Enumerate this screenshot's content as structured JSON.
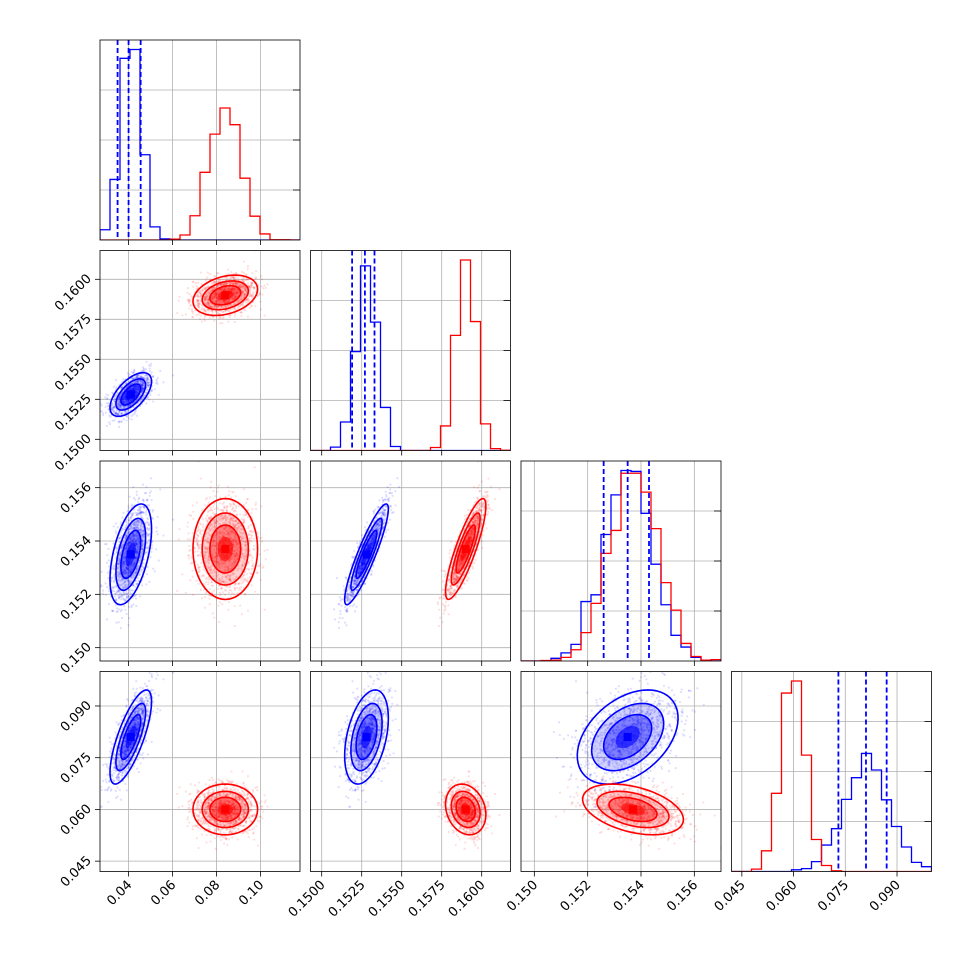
{
  "chart_data": {
    "type": "corner",
    "grid": true,
    "parameters": [
      {
        "lim": [
          0.027,
          0.118
        ],
        "ticks": [
          0.04,
          0.06,
          0.08,
          0.1
        ],
        "tick_labels": [
          "0.04",
          "0.06",
          "0.08",
          "0.10"
        ]
      },
      {
        "lim": [
          0.1493,
          0.1618
        ],
        "ticks": [
          0.15,
          0.1525,
          0.155,
          0.1575,
          0.16
        ],
        "tick_labels": [
          "0.1500",
          "0.1525",
          "0.1550",
          "0.1575",
          "0.1600"
        ]
      },
      {
        "lim": [
          0.1495,
          0.157
        ],
        "ticks": [
          0.15,
          0.152,
          0.154,
          0.156
        ],
        "tick_labels": [
          "0.150",
          "0.152",
          "0.154",
          "0.156"
        ]
      },
      {
        "lim": [
          0.042,
          0.1
        ],
        "ticks": [
          0.045,
          0.06,
          0.075,
          0.09
        ],
        "tick_labels": [
          "0.045",
          "0.060",
          "0.075",
          "0.090"
        ]
      }
    ],
    "series": [
      {
        "color": "#0000ff",
        "means": [
          0.041,
          0.1528,
          0.1535,
          0.081
        ],
        "stds": [
          0.0045,
          0.00065,
          0.0009,
          0.0065
        ],
        "corr": [
          [
            1,
            0.6,
            0.5,
            0.75
          ],
          [
            0.6,
            1,
            0.9,
            0.4
          ],
          [
            0.5,
            0.9,
            1,
            0.4
          ],
          [
            0.75,
            0.4,
            0.4,
            1
          ]
        ],
        "quantiles": [
          [
            0.035,
            0.04,
            0.0455
          ],
          [
            0.1519,
            0.1527,
            0.1533
          ],
          [
            0.1526,
            0.1535,
            0.1543
          ],
          [
            0.073,
            0.081,
            0.087
          ]
        ]
      },
      {
        "color": "#ff0000",
        "means": [
          0.084,
          0.159,
          0.1537,
          0.06
        ],
        "stds": [
          0.007,
          0.0006,
          0.0009,
          0.0035
        ],
        "corr": [
          [
            1,
            0.3,
            0.0,
            0.0
          ],
          [
            0.3,
            1,
            0.85,
            -0.2
          ],
          [
            0.0,
            0.85,
            1,
            -0.4
          ],
          [
            0.0,
            -0.2,
            -0.4,
            1
          ]
        ],
        "quantiles": []
      }
    ]
  }
}
